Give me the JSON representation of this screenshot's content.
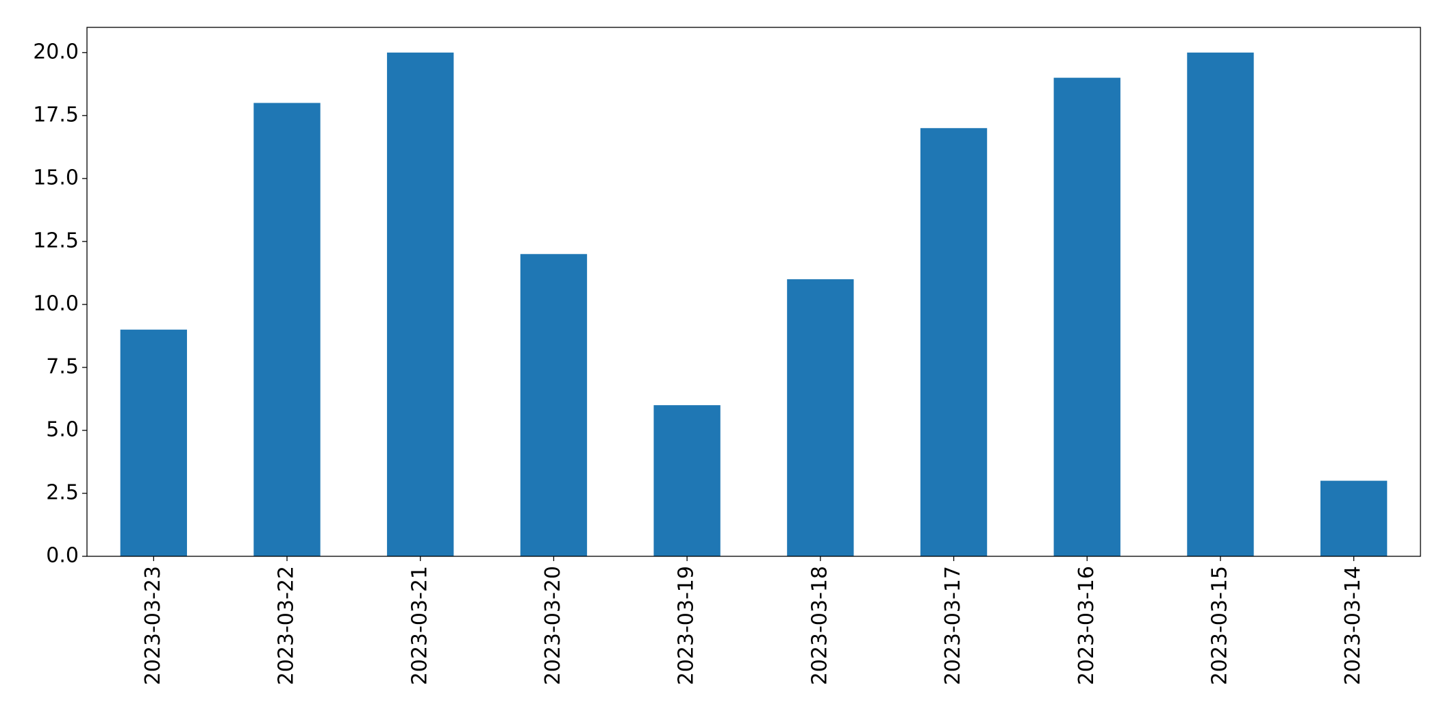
{
  "chart_data": {
    "type": "bar",
    "categories": [
      "2023-03-23",
      "2023-03-22",
      "2023-03-21",
      "2023-03-20",
      "2023-03-19",
      "2023-03-18",
      "2023-03-17",
      "2023-03-16",
      "2023-03-15",
      "2023-03-14"
    ],
    "values": [
      9,
      18,
      20,
      12,
      6,
      11,
      17,
      19,
      20,
      3
    ],
    "color": "#1f77b4",
    "ylim": [
      0,
      21
    ],
    "yticks": [
      {
        "value": 0,
        "label": "0.0"
      },
      2.5,
      {
        "value": 5,
        "label": "5.0"
      },
      7.5,
      {
        "value": 10,
        "label": "10.0"
      },
      12.5,
      {
        "value": 15,
        "label": "15.0"
      },
      17.5,
      {
        "value": 20,
        "label": "20.0"
      }
    ],
    "grid": false
  }
}
